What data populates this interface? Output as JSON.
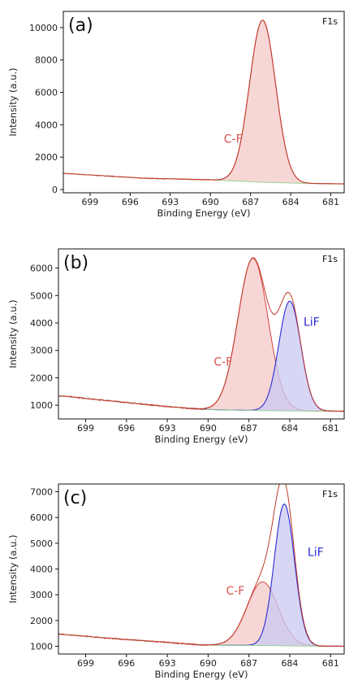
{
  "chart_data": [
    {
      "type": "line",
      "panel_label": "(a)",
      "corner_label": "F1s",
      "xlabel": "Binding Energy (eV)",
      "ylabel": "Intensity (a.u.)",
      "xlim": [
        701,
        680
      ],
      "ylim": [
        -200,
        11000
      ],
      "xticks": [
        699,
        696,
        693,
        690,
        687,
        684,
        681
      ],
      "yticks": [
        0,
        2000,
        4000,
        6000,
        8000,
        10000
      ],
      "colors": {
        "raw": "#c0392b",
        "cf": "#d9534f",
        "cf_fill": "#f4c6c3",
        "lif": "#2c2cd6",
        "lif_fill": "#c9c9f2",
        "fit": "#8fd18f"
      },
      "background": {
        "x": [
          701,
          695,
          690,
          686,
          683,
          680
        ],
        "y": [
          1000,
          700,
          600,
          450,
          380,
          350
        ]
      },
      "peaks": [
        {
          "name": "C-F",
          "center": 686.1,
          "height": 10000,
          "fwhm": 2.3
        }
      ],
      "annotations": [
        {
          "text": "C-F",
          "x": 688.3,
          "y": 2900,
          "color": "#d9534f"
        }
      ]
    },
    {
      "type": "line",
      "panel_label": "(b)",
      "corner_label": "F1s",
      "xlabel": "Binding Energy (eV)",
      "ylabel": "Intensity (a.u.)",
      "xlim": [
        701,
        680
      ],
      "ylim": [
        500,
        6700
      ],
      "xticks": [
        699,
        696,
        693,
        690,
        687,
        684,
        681
      ],
      "yticks": [
        1000,
        2000,
        3000,
        4000,
        5000,
        6000
      ],
      "colors": {
        "raw": "#c0392b",
        "cf": "#d9534f",
        "cf_fill": "#f4c6c3",
        "lif": "#2c2cd6",
        "lif_fill": "#c9c9f2",
        "fit": "#8fd18f"
      },
      "background": {
        "x": [
          701,
          697,
          693,
          690.5,
          686,
          683,
          680
        ],
        "y": [
          1350,
          1150,
          950,
          850,
          800,
          790,
          780
        ]
      },
      "peaks": [
        {
          "name": "C-F",
          "center": 686.7,
          "height": 5550,
          "fwhm": 2.6
        },
        {
          "name": "LiF",
          "center": 684.0,
          "height": 4000,
          "fwhm": 1.9
        }
      ],
      "annotations": [
        {
          "text": "C-F",
          "x": 688.9,
          "y": 2450,
          "color": "#d9534f"
        },
        {
          "text": "LiF",
          "x": 682.4,
          "y": 3900,
          "color": "#2c2cd6"
        }
      ]
    },
    {
      "type": "line",
      "panel_label": "(c)",
      "corner_label": "F1s",
      "xlabel": "Binding Energy (eV)",
      "ylabel": "Intensity (a.u.)",
      "xlim": [
        701,
        680
      ],
      "ylim": [
        700,
        7300
      ],
      "xticks": [
        699,
        696,
        693,
        690,
        687,
        684,
        681
      ],
      "yticks": [
        1000,
        2000,
        3000,
        4000,
        5000,
        6000,
        7000
      ],
      "colors": {
        "raw": "#c0392b",
        "cf": "#d9534f",
        "cf_fill": "#f4c6c3",
        "lif": "#2c2cd6",
        "lif_fill": "#c9c9f2",
        "fit": "#8fd18f"
      },
      "background": {
        "x": [
          701,
          697,
          693,
          690.5,
          686,
          683,
          680
        ],
        "y": [
          1480,
          1300,
          1150,
          1050,
          1030,
          1010,
          1000
        ]
      },
      "peaks": [
        {
          "name": "C-F",
          "center": 686.0,
          "height": 2470,
          "fwhm": 2.7
        },
        {
          "name": "LiF",
          "center": 684.4,
          "height": 5500,
          "fwhm": 1.75
        }
      ],
      "annotations": [
        {
          "text": "C-F",
          "x": 688.0,
          "y": 3000,
          "color": "#d9534f"
        },
        {
          "text": "LiF",
          "x": 682.1,
          "y": 4500,
          "color": "#2c2cd6"
        }
      ]
    }
  ]
}
